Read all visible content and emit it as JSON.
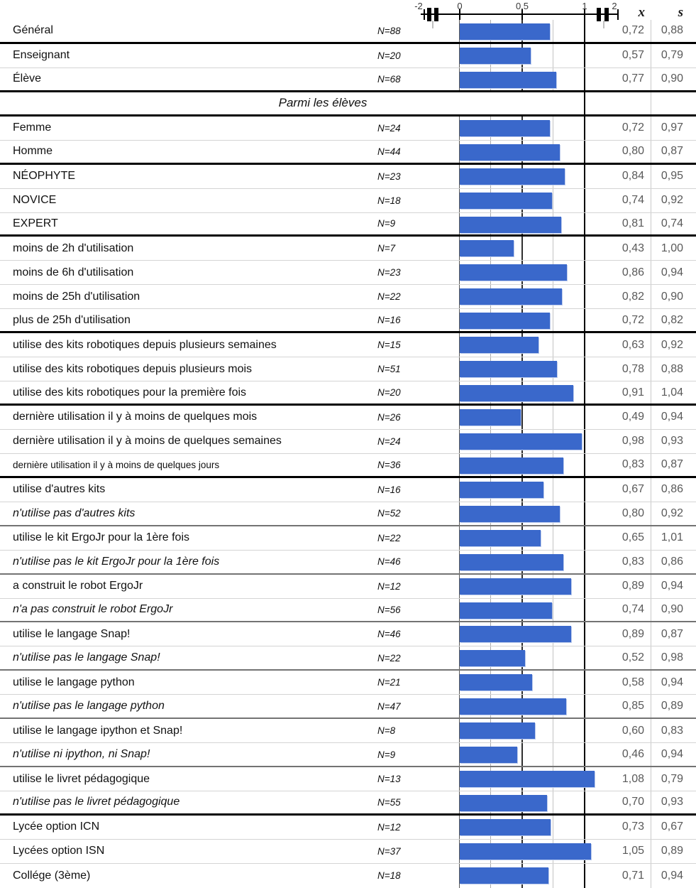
{
  "columns": {
    "mean_label": "x",
    "sd_label": "s"
  },
  "axis": {
    "ticks": [
      "-2",
      "0",
      "0,5",
      "1",
      "2"
    ]
  },
  "colors": {
    "bar": "#3A68CB",
    "value_text": "#595959",
    "major_line": "#000000",
    "medium_line": "#737373",
    "minor_line": "#D4D4D4",
    "column_separator": "#C9C9C9"
  },
  "rows": [
    {
      "type": "data",
      "label": "Général",
      "italic": false,
      "n": "N=88",
      "value": 0.72,
      "x": "0,72",
      "s": "0,88",
      "sep": "major"
    },
    {
      "type": "data",
      "label": "Enseignant",
      "italic": false,
      "n": "N=20",
      "value": 0.57,
      "x": "0,57",
      "s": "0,79",
      "sep": "minor"
    },
    {
      "type": "data",
      "label": "Élève",
      "italic": false,
      "n": "N=68",
      "value": 0.77,
      "x": "0,77",
      "s": "0,90",
      "sep": "major"
    },
    {
      "type": "section",
      "label": "Parmi les élèves",
      "sep": "major"
    },
    {
      "type": "data",
      "label": "Femme",
      "italic": false,
      "n": "N=24",
      "value": 0.72,
      "x": "0,72",
      "s": "0,97",
      "sep": "minor"
    },
    {
      "type": "data",
      "label": "Homme",
      "italic": false,
      "n": "N=44",
      "value": 0.8,
      "x": "0,80",
      "s": "0,87",
      "sep": "major"
    },
    {
      "type": "data",
      "label": "NÉOPHYTE",
      "italic": false,
      "n": "N=23",
      "value": 0.84,
      "x": "0,84",
      "s": "0,95",
      "sep": "minor"
    },
    {
      "type": "data",
      "label": "NOVICE",
      "italic": false,
      "n": "N=18",
      "value": 0.74,
      "x": "0,74",
      "s": "0,92",
      "sep": "minor"
    },
    {
      "type": "data",
      "label": "EXPERT",
      "italic": false,
      "n": "N=9",
      "value": 0.81,
      "x": "0,81",
      "s": "0,74",
      "sep": "major"
    },
    {
      "type": "data",
      "label": "moins de 2h d'utilisation",
      "italic": false,
      "n": "N=7",
      "value": 0.43,
      "x": "0,43",
      "s": "1,00",
      "sep": "minor"
    },
    {
      "type": "data",
      "label": "moins de 6h d'utilisation",
      "italic": false,
      "n": "N=23",
      "value": 0.86,
      "x": "0,86",
      "s": "0,94",
      "sep": "minor"
    },
    {
      "type": "data",
      "label": "moins de 25h d'utilisation",
      "italic": false,
      "n": "N=22",
      "value": 0.82,
      "x": "0,82",
      "s": "0,90",
      "sep": "minor"
    },
    {
      "type": "data",
      "label": "plus de 25h d'utilisation",
      "italic": false,
      "n": "N=16",
      "value": 0.72,
      "x": "0,72",
      "s": "0,82",
      "sep": "major"
    },
    {
      "type": "data",
      "label": "utilise des kits robotiques depuis plusieurs semaines",
      "italic": false,
      "n": "N=15",
      "value": 0.63,
      "x": "0,63",
      "s": "0,92",
      "sep": "minor"
    },
    {
      "type": "data",
      "label": "utilise des kits robotiques depuis plusieurs mois",
      "italic": false,
      "n": "N=51",
      "value": 0.78,
      "x": "0,78",
      "s": "0,88",
      "sep": "minor"
    },
    {
      "type": "data",
      "label": "utilise des kits robotiques pour la première fois",
      "italic": false,
      "n": "N=20",
      "value": 0.91,
      "x": "0,91",
      "s": "1,04",
      "sep": "major"
    },
    {
      "type": "data",
      "label": "dernière utilisation il y à moins de quelques mois",
      "italic": false,
      "n": "N=26",
      "value": 0.49,
      "x": "0,49",
      "s": "0,94",
      "sep": "minor"
    },
    {
      "type": "data",
      "label": "dernière utilisation il y à moins de quelques semaines",
      "italic": false,
      "n": "N=24",
      "value": 0.98,
      "x": "0,98",
      "s": "0,93",
      "sep": "minor"
    },
    {
      "type": "data",
      "label": "dernière utilisation il y à moins de quelques jours",
      "italic": false,
      "small": true,
      "n": "N=36",
      "value": 0.83,
      "x": "0,83",
      "s": "0,87",
      "sep": "major"
    },
    {
      "type": "data",
      "label": "utilise d'autres kits",
      "italic": false,
      "n": "N=16",
      "value": 0.67,
      "x": "0,67",
      "s": "0,86",
      "sep": "minor"
    },
    {
      "type": "data",
      "label": "n'utilise pas d'autres kits",
      "italic": true,
      "n": "N=52",
      "value": 0.8,
      "x": "0,80",
      "s": "0,92",
      "sep": "medium"
    },
    {
      "type": "data",
      "label": "utilise le kit ErgoJr pour la 1ère fois",
      "italic": false,
      "n": "N=22",
      "value": 0.65,
      "x": "0,65",
      "s": "1,01",
      "sep": "minor"
    },
    {
      "type": "data",
      "label": "n'utilise pas le kit ErgoJr pour la 1ère fois",
      "italic": true,
      "n": "N=46",
      "value": 0.83,
      "x": "0,83",
      "s": "0,86",
      "sep": "medium"
    },
    {
      "type": "data",
      "label": "a construit le robot ErgoJr",
      "italic": false,
      "n": "N=12",
      "value": 0.89,
      "x": "0,89",
      "s": "0,94",
      "sep": "minor"
    },
    {
      "type": "data",
      "label": "n'a pas construit le robot ErgoJr",
      "italic": true,
      "n": "N=56",
      "value": 0.74,
      "x": "0,74",
      "s": "0,90",
      "sep": "medium"
    },
    {
      "type": "data",
      "label": "utilise le langage Snap!",
      "italic": false,
      "n": "N=46",
      "value": 0.89,
      "x": "0,89",
      "s": "0,87",
      "sep": "minor"
    },
    {
      "type": "data",
      "label": "n'utilise pas le langage Snap!",
      "italic": true,
      "n": "N=22",
      "value": 0.52,
      "x": "0,52",
      "s": "0,98",
      "sep": "medium"
    },
    {
      "type": "data",
      "label": "utilise le langage python",
      "italic": false,
      "n": "N=21",
      "value": 0.58,
      "x": "0,58",
      "s": "0,94",
      "sep": "minor"
    },
    {
      "type": "data",
      "label": "n'utilise pas le langage python",
      "italic": true,
      "n": "N=47",
      "value": 0.85,
      "x": "0,85",
      "s": "0,89",
      "sep": "medium"
    },
    {
      "type": "data",
      "label": "utilise le langage ipython et Snap!",
      "italic": false,
      "n": "N=8",
      "value": 0.6,
      "x": "0,60",
      "s": "0,83",
      "sep": "minor"
    },
    {
      "type": "data",
      "label": "n'utilise ni ipython, ni Snap!",
      "italic": true,
      "n": "N=9",
      "value": 0.46,
      "x": "0,46",
      "s": "0,94",
      "sep": "medium"
    },
    {
      "type": "data",
      "label": "utilise le livret pédagogique",
      "italic": false,
      "n": "N=13",
      "value": 1.08,
      "x": "1,08",
      "s": "0,79",
      "sep": "minor"
    },
    {
      "type": "data",
      "label": "n'utilise pas le livret pédagogique",
      "italic": true,
      "n": "N=55",
      "value": 0.7,
      "x": "0,70",
      "s": "0,93",
      "sep": "major"
    },
    {
      "type": "data",
      "label": "Lycée option ICN",
      "italic": false,
      "n": "N=12",
      "value": 0.73,
      "x": "0,73",
      "s": "0,67",
      "sep": "minor"
    },
    {
      "type": "data",
      "label": "Lycées option ISN",
      "italic": false,
      "n": "N=37",
      "value": 1.05,
      "x": "1,05",
      "s": "0,89",
      "sep": "minor"
    },
    {
      "type": "data",
      "label": "Collége (3ème)",
      "italic": false,
      "n": "N=18",
      "value": 0.71,
      "x": "0,71",
      "s": "0,94",
      "sep": "none"
    }
  ],
  "chart_data": {
    "type": "bar",
    "orientation": "horizontal",
    "title": "",
    "xlabel": "",
    "ylabel": "",
    "axis_ticks": [
      -2,
      0,
      0.5,
      1,
      2
    ],
    "axis_breaks": [
      [
        -2,
        0
      ],
      [
        1,
        2
      ]
    ],
    "gridlines_at": [
      0,
      0.25,
      0.5,
      0.75,
      1
    ],
    "section_header": "Parmi les élèves",
    "categories": [
      "Général",
      "Enseignant",
      "Élève",
      "Femme",
      "Homme",
      "NÉOPHYTE",
      "NOVICE",
      "EXPERT",
      "moins de 2h d'utilisation",
      "moins de 6h d'utilisation",
      "moins de 25h d'utilisation",
      "plus de 25h d'utilisation",
      "utilise des kits robotiques depuis plusieurs semaines",
      "utilise des kits robotiques depuis plusieurs mois",
      "utilise des kits robotiques pour la première fois",
      "dernière utilisation il y à moins de quelques mois",
      "dernière utilisation il y à moins de quelques semaines",
      "dernière utilisation il y à moins de quelques jours",
      "utilise d'autres kits",
      "n'utilise pas d'autres kits",
      "utilise le kit ErgoJr pour la 1ère fois",
      "n'utilise pas le kit ErgoJr pour la 1ère fois",
      "a construit le robot ErgoJr",
      "n'a pas construit le robot ErgoJr",
      "utilise le langage Snap!",
      "n'utilise pas le langage Snap!",
      "utilise le langage python",
      "n'utilise pas le langage python",
      "utilise le langage ipython et Snap!",
      "n'utilise ni ipython, ni Snap!",
      "utilise le livret pédagogique",
      "n'utilise pas le livret pédagogique",
      "Lycée option ICN",
      "Lycées option ISN",
      "Collége (3ème)"
    ],
    "series": [
      {
        "name": "N",
        "values": [
          88,
          20,
          68,
          24,
          44,
          23,
          18,
          9,
          7,
          23,
          22,
          16,
          15,
          51,
          20,
          26,
          24,
          36,
          16,
          52,
          22,
          46,
          12,
          56,
          46,
          22,
          21,
          47,
          8,
          9,
          13,
          55,
          12,
          37,
          18
        ]
      },
      {
        "name": "x (moyenne)",
        "values": [
          0.72,
          0.57,
          0.77,
          0.72,
          0.8,
          0.84,
          0.74,
          0.81,
          0.43,
          0.86,
          0.82,
          0.72,
          0.63,
          0.78,
          0.91,
          0.49,
          0.98,
          0.83,
          0.67,
          0.8,
          0.65,
          0.83,
          0.89,
          0.74,
          0.89,
          0.52,
          0.58,
          0.85,
          0.6,
          0.46,
          1.08,
          0.7,
          0.73,
          1.05,
          0.71
        ]
      },
      {
        "name": "s (écart-type)",
        "values": [
          0.88,
          0.79,
          0.9,
          0.97,
          0.87,
          0.95,
          0.92,
          0.74,
          1.0,
          0.94,
          0.9,
          0.82,
          0.92,
          0.88,
          1.04,
          0.94,
          0.93,
          0.87,
          0.86,
          0.92,
          1.01,
          0.86,
          0.94,
          0.9,
          0.87,
          0.98,
          0.94,
          0.89,
          0.83,
          0.94,
          0.79,
          0.93,
          0.67,
          0.89,
          0.94
        ]
      }
    ],
    "bar_color": "#3A68CB",
    "legend_position": "none",
    "grid": true
  }
}
